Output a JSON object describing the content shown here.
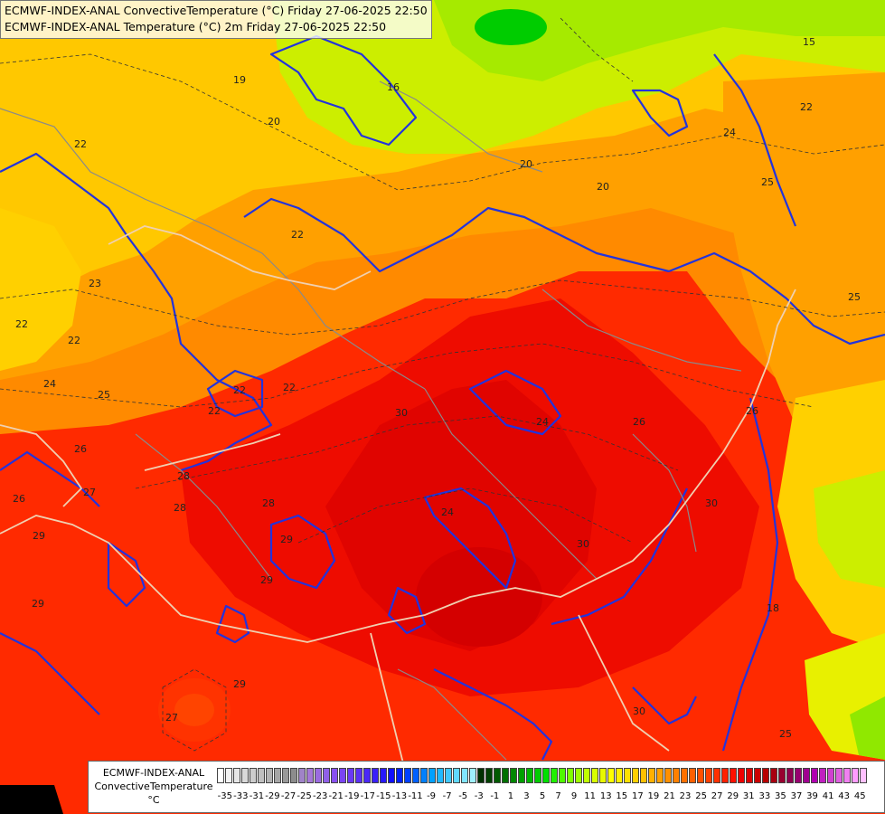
{
  "titles": {
    "line1": "ECMWF-INDEX-ANAL ConvectiveTemperature (°C) Friday 27-06-2025 22:50",
    "line2": "ECMWF-INDEX-ANAL Temperature (°C) 2m Friday 27-06-2025 22:50"
  },
  "legend": {
    "line1": "ECMWF-INDEX-ANAL",
    "line2": "ConvectiveTemperature",
    "line3": "°C",
    "tick_labels": [
      "-35",
      "-33",
      "-31",
      "-29",
      "-27",
      "-25",
      "-23",
      "-21",
      "-19",
      "-17",
      "-15",
      "-13",
      "-11",
      "-9",
      "-7",
      "-5",
      "-3",
      "-1",
      "1",
      "3",
      "5",
      "7",
      "9",
      "11",
      "13",
      "15",
      "17",
      "19",
      "21",
      "23",
      "25",
      "27",
      "29",
      "31",
      "33",
      "35",
      "37",
      "39",
      "41",
      "43",
      "45"
    ],
    "colors": [
      "#ffffff",
      "#f2f2f2",
      "#e6e6e6",
      "#d9d9d9",
      "#cccccc",
      "#bfbfbf",
      "#b3b3b3",
      "#a6a6a6",
      "#999999",
      "#8c8c8c",
      "#a083c8",
      "#a678d8",
      "#9b6be0",
      "#9060e8",
      "#8850f0",
      "#7a44f2",
      "#6a38f4",
      "#5a30f6",
      "#4a28f8",
      "#3a20fa",
      "#2818fc",
      "#1010ff",
      "#0020ff",
      "#0040ff",
      "#0060ff",
      "#0080ff",
      "#00a0ff",
      "#20b8ff",
      "#40c8ff",
      "#60d8ff",
      "#80e4ff",
      "#9ff0ff",
      "#003000",
      "#004000",
      "#005a00",
      "#007000",
      "#008800",
      "#00a000",
      "#00b800",
      "#00cc00",
      "#00e000",
      "#20f000",
      "#50f800",
      "#80ff00",
      "#a0ff00",
      "#c0ff00",
      "#d8ff00",
      "#e8f800",
      "#ffff00",
      "#fff000",
      "#ffe000",
      "#ffd000",
      "#ffc000",
      "#ffb000",
      "#ffa000",
      "#ff9000",
      "#ff8000",
      "#ff7000",
      "#ff6000",
      "#ff5000",
      "#ff4000",
      "#ff3000",
      "#ff2000",
      "#ff1000",
      "#ee0000",
      "#dd0000",
      "#cc0000",
      "#b80000",
      "#a80010",
      "#980030",
      "#900050",
      "#980070",
      "#a00090",
      "#b000b0",
      "#c020c0",
      "#d040d0",
      "#e060e0",
      "#f080f0",
      "#ff9cff",
      "#ffc0ff"
    ]
  },
  "contour_labels": [
    "22",
    "22",
    "22",
    "23",
    "22",
    "24",
    "25",
    "26",
    "27",
    "28",
    "29",
    "29",
    "27",
    "22",
    "20",
    "20",
    "20",
    "16",
    "19",
    "15",
    "24",
    "22",
    "22",
    "22",
    "25",
    "25",
    "26",
    "30",
    "28",
    "30",
    "26",
    "25",
    "24",
    "29",
    "30",
    "24",
    "26",
    "29",
    "29",
    "28",
    "30",
    "18"
  ],
  "field_colors": {
    "deep": "#d40000",
    "hot": "#e80a00",
    "warm": "#ff3300",
    "orange": "#ff6a00",
    "amber": "#ff9a00",
    "yellow": "#ffcc00",
    "lime": "#ccf000",
    "green": "#a6ea00",
    "bright": "#00c800",
    "isoline": "#2233dd",
    "border": "#f0d0b0"
  }
}
